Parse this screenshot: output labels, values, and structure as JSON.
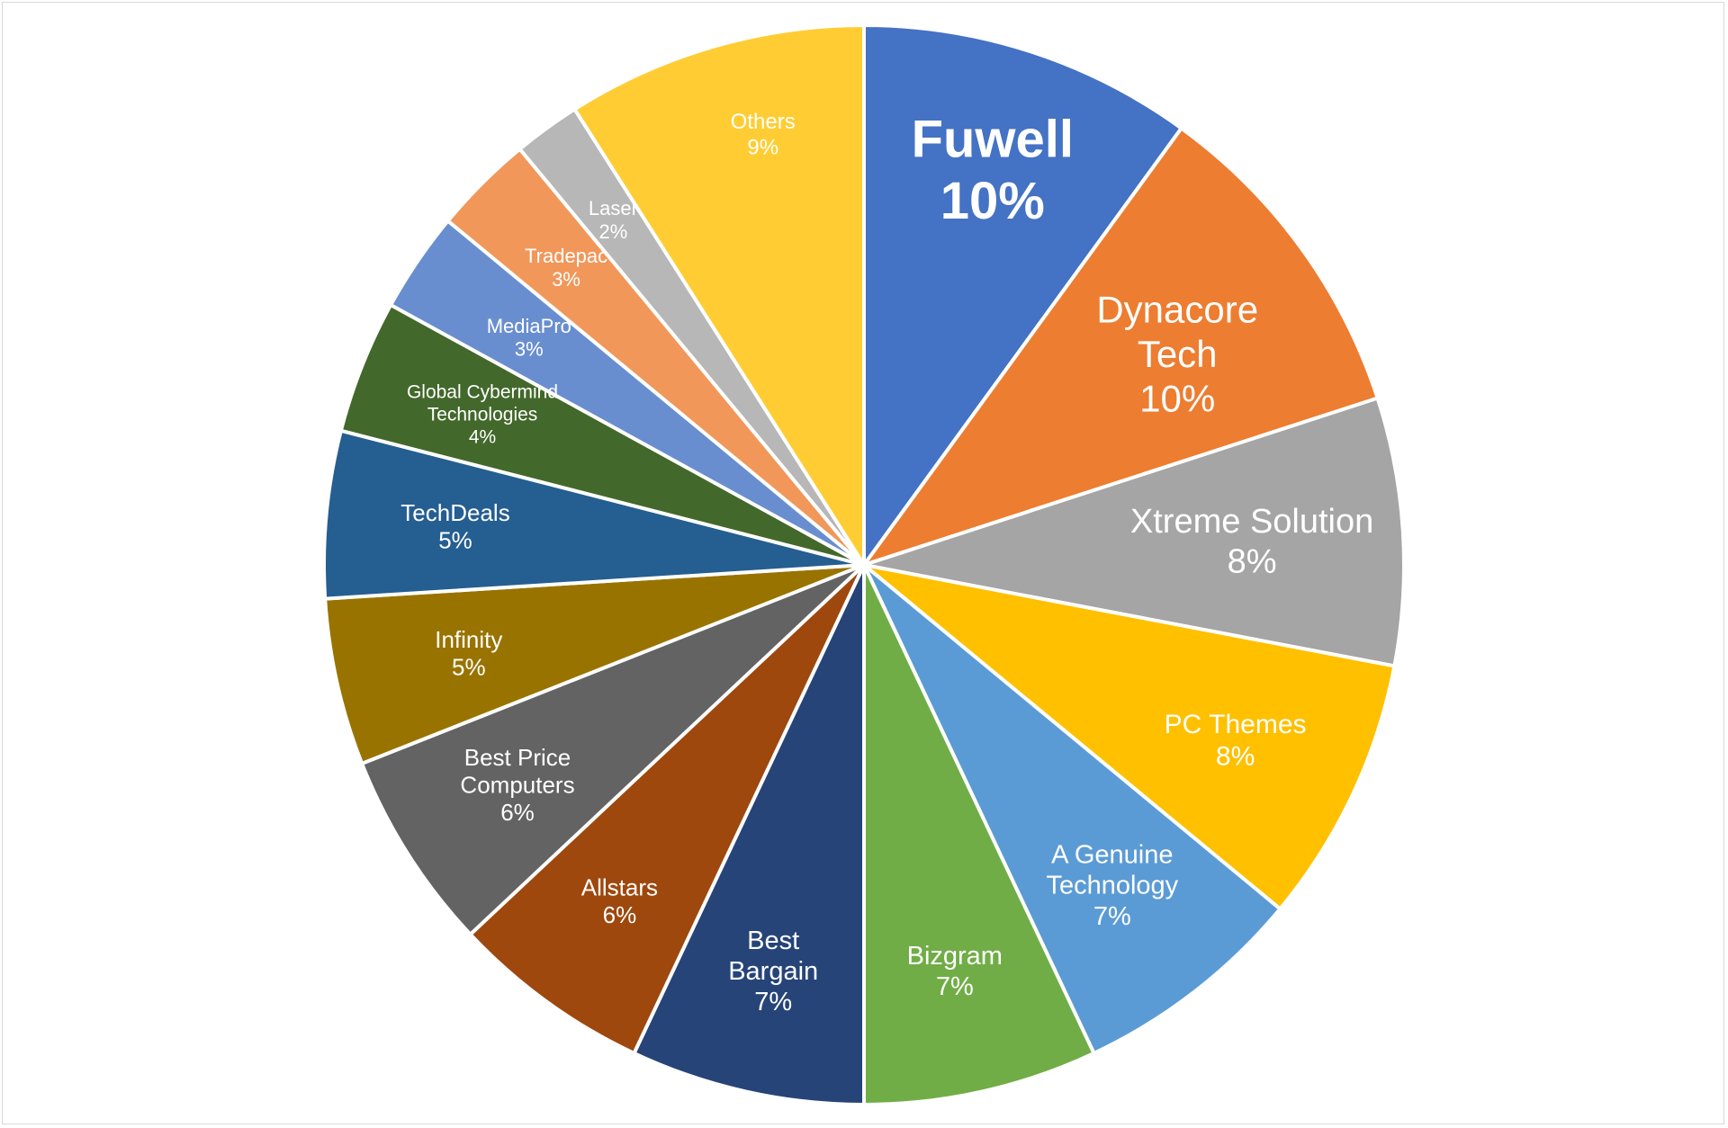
{
  "chart_data": {
    "type": "pie",
    "title": "",
    "start": "12 o'clock",
    "direction": "clockwise",
    "slices": [
      {
        "label": "Fuwell",
        "value": 10,
        "pct": "10%",
        "color": "#4472C4",
        "bold": true
      },
      {
        "label": "Dynacore Tech",
        "value": 10,
        "pct": "10%",
        "color": "#ED7D31"
      },
      {
        "label": "Xtreme Solution",
        "value": 8,
        "pct": "8%",
        "color": "#A5A5A5"
      },
      {
        "label": "PC Themes",
        "value": 8,
        "pct": "8%",
        "color": "#FFC000"
      },
      {
        "label": "A Genuine Technology",
        "value": 7,
        "pct": "7%",
        "color": "#5B9BD5"
      },
      {
        "label": "Bizgram",
        "value": 7,
        "pct": "7%",
        "color": "#70AD47"
      },
      {
        "label": "Best Bargain",
        "value": 7,
        "pct": "7%",
        "color": "#264478"
      },
      {
        "label": "Allstars",
        "value": 6,
        "pct": "6%",
        "color": "#9E480E"
      },
      {
        "label": "Best Price Computers",
        "value": 6,
        "pct": "6%",
        "color": "#636363"
      },
      {
        "label": "Infinity",
        "value": 5,
        "pct": "5%",
        "color": "#997300"
      },
      {
        "label": "TechDeals",
        "value": 5,
        "pct": "5%",
        "color": "#255E91"
      },
      {
        "label": "Global Cybermind Technologies",
        "value": 4,
        "pct": "4%",
        "color": "#43682B"
      },
      {
        "label": "MediaPro",
        "value": 3,
        "pct": "3%",
        "color": "#698ED0"
      },
      {
        "label": "Tradepac",
        "value": 3,
        "pct": "3%",
        "color": "#F1975A"
      },
      {
        "label": "Laser",
        "value": 2,
        "pct": "2%",
        "color": "#B7B7B7"
      },
      {
        "label": "Others",
        "value": 9,
        "pct": "9%",
        "color": "#FFCD33"
      }
    ]
  }
}
